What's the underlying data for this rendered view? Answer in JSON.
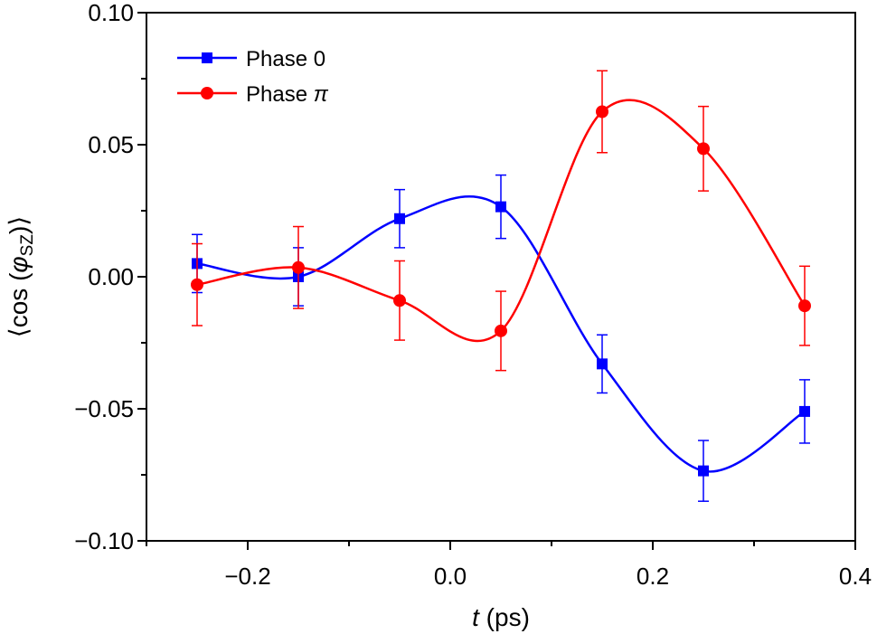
{
  "chart_data": {
    "type": "line",
    "title": "",
    "xlabel": "t (ps)",
    "xlabel_italic_part": "t",
    "xlabel_rest": " (ps)",
    "ylabel": "⟨cos (φSZ)⟩",
    "ylabel_prefix": "⟨cos (",
    "ylabel_symbol": "φ",
    "ylabel_subscript": "SZ",
    "ylabel_suffix": ")⟩",
    "xlim": [
      -0.3,
      0.4
    ],
    "ylim": [
      -0.1,
      0.1
    ],
    "xticks": [
      -0.2,
      0.0,
      0.2,
      0.4
    ],
    "xtick_labels": [
      "−0.2",
      "0.0",
      "0.2",
      "0.4"
    ],
    "yticks": [
      -0.1,
      -0.05,
      0.0,
      0.05,
      0.1
    ],
    "ytick_labels": [
      "−0.10",
      "−0.05",
      "0.00",
      "0.05",
      "0.10"
    ],
    "grid": false,
    "legend_position": "top-left",
    "series": [
      {
        "name": "Phase 0",
        "label_text": "Phase 0",
        "label_symbol": "",
        "color": "#0000ff",
        "marker": "square",
        "x": [
          -0.25,
          -0.15,
          -0.05,
          0.05,
          0.15,
          0.25,
          0.35
        ],
        "y": [
          0.005,
          0.0,
          0.022,
          0.0265,
          -0.033,
          -0.0735,
          -0.051
        ],
        "yerr": [
          0.011,
          0.011,
          0.011,
          0.012,
          0.011,
          0.0115,
          0.012
        ]
      },
      {
        "name": "Phase π",
        "label_text": "Phase ",
        "label_symbol": "π",
        "color": "#ff0000",
        "marker": "circle",
        "x": [
          -0.25,
          -0.15,
          -0.05,
          0.05,
          0.15,
          0.25,
          0.35
        ],
        "y": [
          -0.003,
          0.0035,
          -0.009,
          -0.0205,
          0.0625,
          0.0485,
          -0.011
        ],
        "yerr": [
          0.0155,
          0.0155,
          0.015,
          0.015,
          0.0155,
          0.016,
          0.015
        ]
      }
    ]
  }
}
